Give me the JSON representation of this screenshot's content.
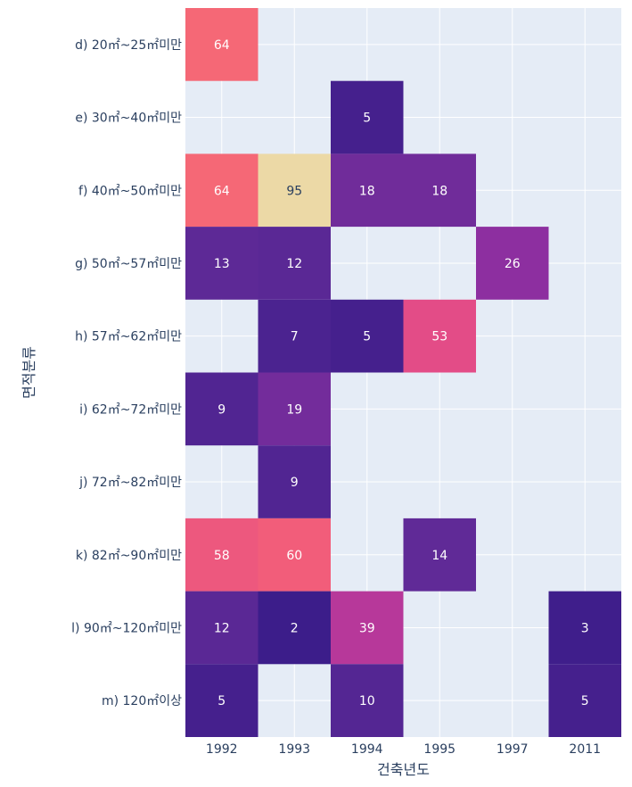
{
  "chart_data": {
    "type": "heatmap",
    "title": "",
    "xlabel": "건축년도",
    "ylabel": "면적분류",
    "x": [
      "1992",
      "1993",
      "1994",
      "1995",
      "1997",
      "2011"
    ],
    "y": [
      "d) 20㎡~25㎡미만",
      "e) 30㎡~40㎡미만",
      "f) 40㎡~50㎡미만",
      "g) 50㎡~57㎡미만",
      "h) 57㎡~62㎡미만",
      "i) 62㎡~72㎡미만",
      "j) 72㎡~82㎡미만",
      "k) 82㎡~90㎡미만",
      "l) 90㎡~120㎡미만",
      "m) 120㎡이상"
    ],
    "z": [
      [
        64,
        null,
        null,
        null,
        null,
        null
      ],
      [
        null,
        null,
        5,
        null,
        null,
        null
      ],
      [
        64,
        95,
        18,
        18,
        null,
        null
      ],
      [
        13,
        12,
        null,
        null,
        26,
        null
      ],
      [
        null,
        7,
        5,
        53,
        null,
        null
      ],
      [
        9,
        19,
        null,
        null,
        null,
        null
      ],
      [
        null,
        9,
        null,
        null,
        null,
        null
      ],
      [
        58,
        60,
        null,
        14,
        null,
        null
      ],
      [
        12,
        2,
        39,
        null,
        null,
        3
      ],
      [
        5,
        null,
        10,
        null,
        null,
        5
      ]
    ],
    "zrange": [
      2,
      95
    ],
    "colorscale": [
      "#3c1d8a",
      "#5f2a97",
      "#8b2ea0",
      "#b0369d",
      "#d9418f",
      "#f25d7a",
      "#fb7f6f",
      "#f8ab86",
      "#ecd9a6"
    ],
    "grid": true,
    "background_color": "#e5ecf6",
    "grid_color": "#ffffff"
  }
}
